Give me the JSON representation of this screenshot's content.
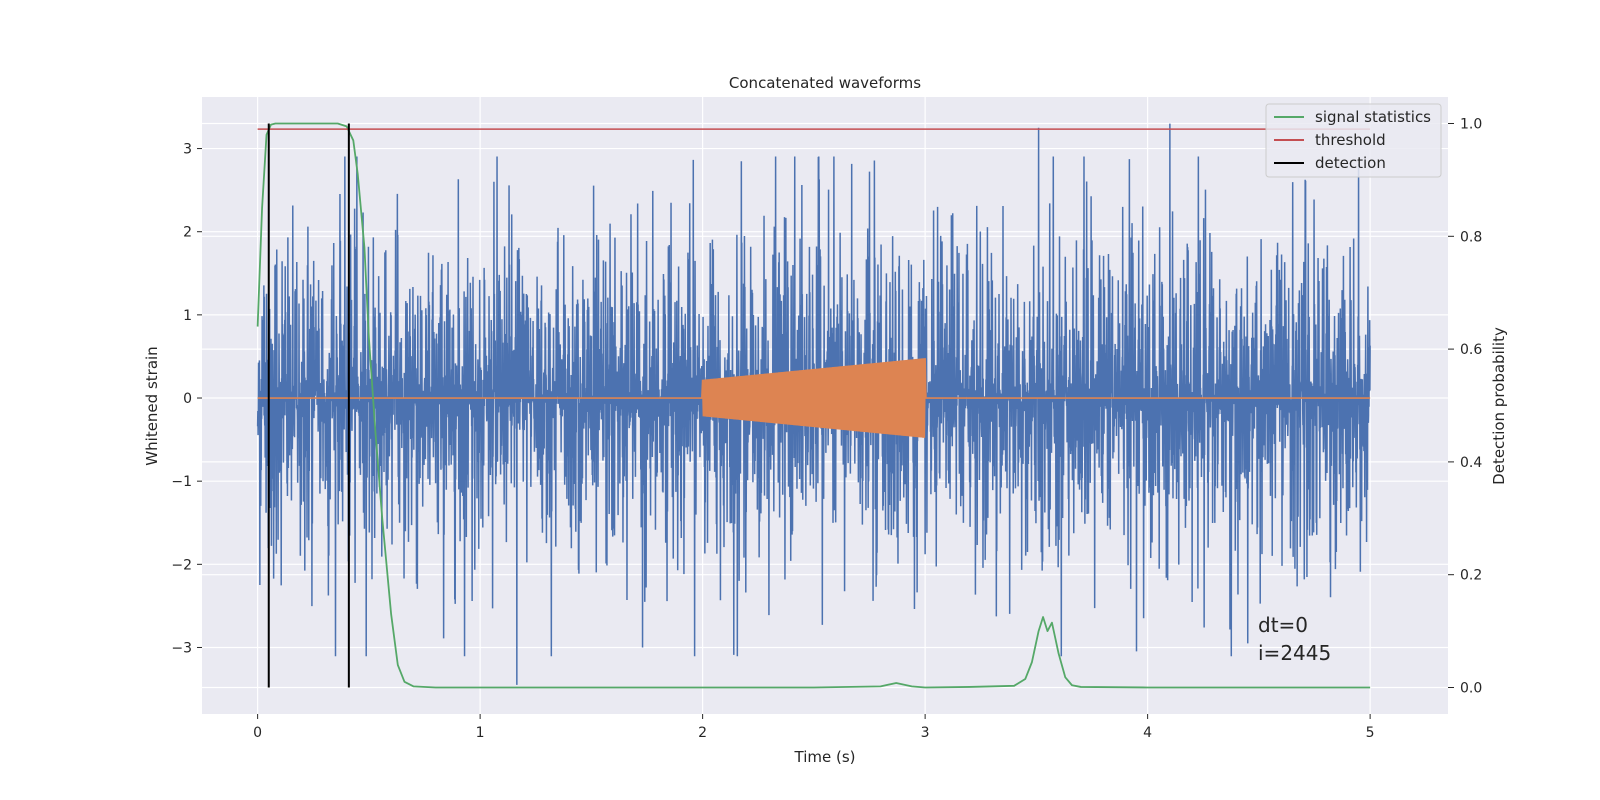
{
  "chart_data": {
    "type": "line",
    "title": "Concatenated waveforms",
    "xlabel": "Time (s)",
    "ylabel": "Whitened strain",
    "y2label": "Detection probability",
    "xlim": [
      -0.25,
      5.35
    ],
    "ylim": [
      -3.8,
      3.62
    ],
    "y2lim": [
      -0.047,
      1.047
    ],
    "xticks": [
      0,
      1,
      2,
      3,
      4,
      5
    ],
    "yticks": [
      -3,
      -2,
      -1,
      0,
      1,
      2,
      3
    ],
    "y2ticks": [
      0.0,
      0.2,
      0.4,
      0.6,
      0.8,
      1.0
    ],
    "xtick_labels": [
      "0",
      "1",
      "2",
      "3",
      "4",
      "5"
    ],
    "ytick_labels": [
      "−3",
      "−2",
      "−1",
      "0",
      "1",
      "2",
      "3"
    ],
    "y2tick_labels": [
      "0.0",
      "0.2",
      "0.4",
      "0.6",
      "0.8",
      "1.0"
    ],
    "grid": true,
    "legend_position": "top-right",
    "colors": {
      "background": "#eaeaf2",
      "strain": "#4c72b0",
      "template": "#dd8452",
      "signal": "#55a868",
      "threshold": "#c44e52",
      "detection": "#000000"
    },
    "series": [
      {
        "name": "",
        "axis": "left",
        "color": "#4c72b0",
        "kind": "noise",
        "x_range": [
          0,
          5
        ],
        "typical_amplitude": 1.4,
        "extreme_range": [
          -3.45,
          3.3
        ],
        "spikes": [
          {
            "x": 1.165,
            "y": -3.45
          },
          {
            "x": 3.51,
            "y": 3.25
          },
          {
            "x": 4.1,
            "y": 3.3
          },
          {
            "x": 2.52,
            "y": 2.9
          },
          {
            "x": 1.73,
            "y": -3.0
          },
          {
            "x": 4.45,
            "y": -2.95
          }
        ]
      },
      {
        "name": "",
        "axis": "left",
        "color": "#dd8452",
        "kind": "chirp",
        "x_range": [
          0,
          5
        ],
        "active_range": [
          2.0,
          3.0
        ],
        "amplitude_start": 0.22,
        "amplitude_end": 0.48
      },
      {
        "name": "signal statistics",
        "axis": "right",
        "color": "#55a868",
        "x": [
          0.0,
          0.02,
          0.04,
          0.06,
          0.08,
          0.1,
          0.15,
          0.2,
          0.3,
          0.36,
          0.4,
          0.43,
          0.45,
          0.48,
          0.5,
          0.53,
          0.56,
          0.6,
          0.63,
          0.66,
          0.7,
          0.8,
          1.0,
          1.5,
          2.0,
          2.5,
          2.8,
          2.87,
          2.94,
          3.0,
          3.2,
          3.4,
          3.45,
          3.48,
          3.51,
          3.53,
          3.55,
          3.57,
          3.6,
          3.63,
          3.66,
          3.7,
          4.0,
          4.5,
          5.0
        ],
        "y": [
          0.64,
          0.85,
          0.98,
          0.998,
          1.0,
          1.0,
          1.0,
          1.0,
          1.0,
          1.0,
          0.995,
          0.97,
          0.91,
          0.78,
          0.62,
          0.45,
          0.3,
          0.13,
          0.04,
          0.01,
          0.002,
          0.0,
          0.0,
          0.0,
          0.0,
          0.0,
          0.002,
          0.008,
          0.002,
          0.0,
          0.001,
          0.003,
          0.015,
          0.045,
          0.1,
          0.125,
          0.1,
          0.115,
          0.06,
          0.018,
          0.004,
          0.001,
          0.0,
          0.0,
          0.0
        ]
      },
      {
        "name": "threshold",
        "axis": "right",
        "color": "#c44e52",
        "x": [
          0,
          5
        ],
        "y": [
          0.99,
          0.99
        ]
      },
      {
        "name": "detection",
        "axis": "right",
        "color": "#000000",
        "vlines": [
          0.05,
          0.41
        ],
        "y_range": [
          0.0,
          1.0
        ]
      }
    ],
    "annotation": {
      "lines": [
        "dt=0",
        "i=2445"
      ],
      "x": 4.5,
      "y": 0.115
    }
  }
}
